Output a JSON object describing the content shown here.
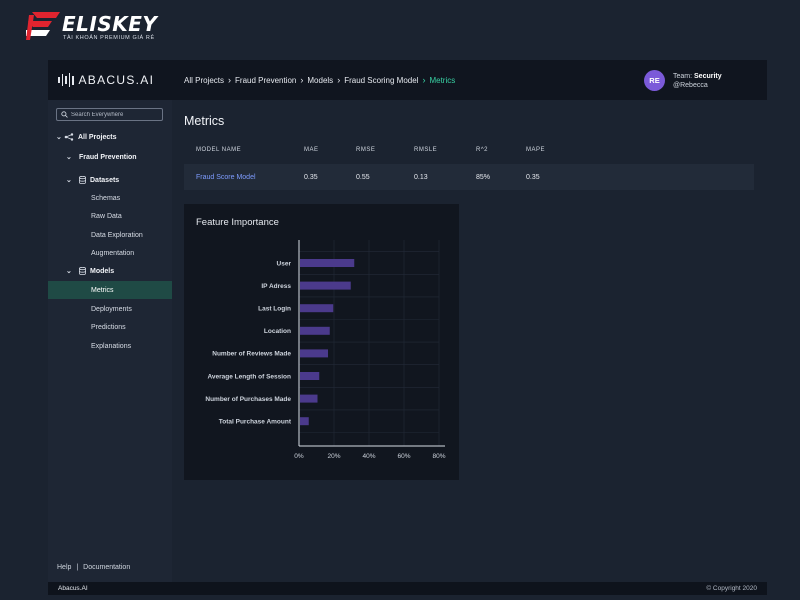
{
  "watermark": {
    "name": "ELISKEY",
    "subtitle": "TÀI KHOẢN PREMIUM GIÁ RẺ"
  },
  "brand": {
    "name": "ABACUS.AI"
  },
  "breadcrumbs": [
    {
      "label": "All Projects"
    },
    {
      "label": "Fraud Prevention"
    },
    {
      "label": "Models"
    },
    {
      "label": "Fraud Scoring Model"
    },
    {
      "label": "Metrics"
    }
  ],
  "user": {
    "initials": "RE",
    "team_label": "Team:",
    "team_name": "Security",
    "handle": "@Rebecca"
  },
  "sidebar": {
    "search_placeholder": "Search Everywhere",
    "items": [
      {
        "label": "All Projects"
      },
      {
        "label": "Fraud Prevention"
      },
      {
        "label": "Datasets"
      },
      {
        "label": "Schemas"
      },
      {
        "label": "Raw Data"
      },
      {
        "label": "Data Exploration"
      },
      {
        "label": "Augmentation"
      },
      {
        "label": "Models"
      },
      {
        "label": "Metrics"
      },
      {
        "label": "Deployments"
      },
      {
        "label": "Predictions"
      },
      {
        "label": "Explanations"
      }
    ],
    "footer_help": "Help",
    "footer_sep": "|",
    "footer_docs": "Documentation"
  },
  "main": {
    "title": "Metrics",
    "table": {
      "headers": [
        "MODEL NAME",
        "MAE",
        "RMSE",
        "RMSLE",
        "R^2",
        "MAPE"
      ],
      "rows": [
        [
          "Fraud Score Model",
          "0.35",
          "0.55",
          "0.13",
          "85%",
          "0.35"
        ]
      ]
    }
  },
  "chart_data": {
    "type": "bar",
    "orientation": "horizontal",
    "title": "Feature Importance",
    "categories": [
      "User",
      "IP Adress",
      "Last Login",
      "Location",
      "Number of Reviews Made",
      "Average Length of Session",
      "Number of Purchases Made",
      "Total Purchase Amount"
    ],
    "values": [
      31,
      29,
      19,
      17,
      16,
      11,
      10,
      5
    ],
    "xlim": [
      0,
      80
    ],
    "xticks": [
      "0%",
      "20%",
      "40%",
      "60%",
      "80%"
    ],
    "grid": true,
    "bar_color": "#4b3a8c"
  },
  "footer": {
    "left": "Abacus.AI",
    "right": "© Copyright 2020"
  }
}
